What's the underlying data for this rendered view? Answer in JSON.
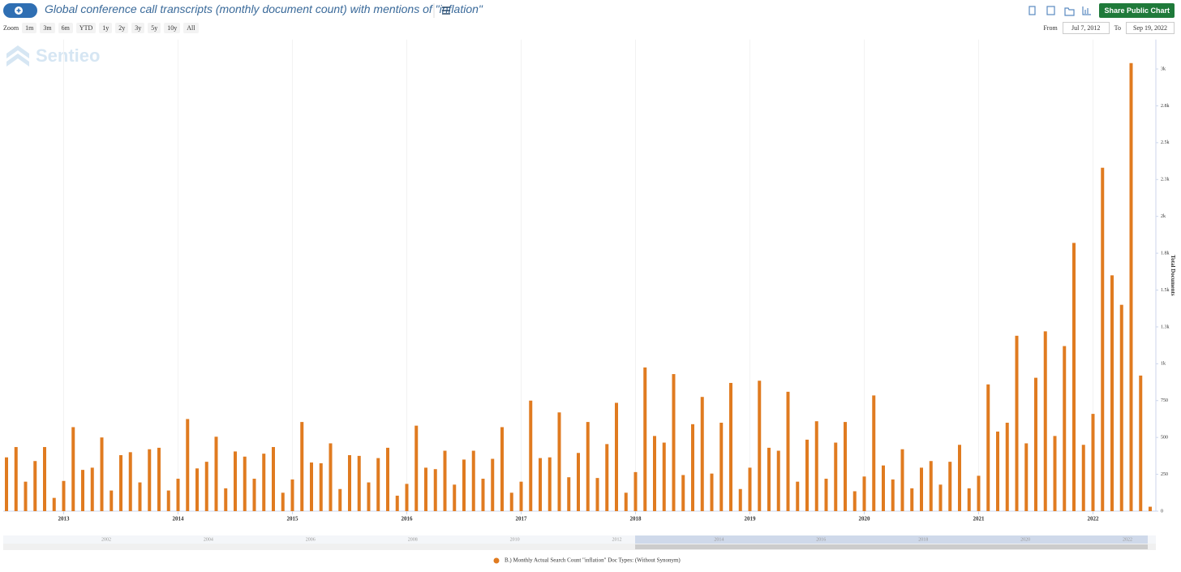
{
  "header": {
    "share_button": "Share Public Chart"
  },
  "toolbar": {
    "zoom_label": "Zoom",
    "buttons": [
      "1m",
      "3m",
      "6m",
      "YTD",
      "1y",
      "2y",
      "3y",
      "5y",
      "10y",
      "All"
    ],
    "from_label": "From",
    "from": "Jul 7, 2012",
    "to_label": "To",
    "to": "Sep 19, 2022"
  },
  "watermark": "Sentieo",
  "navigator": {
    "labels": [
      "2002",
      "2004",
      "2006",
      "2008",
      "2010",
      "2012",
      "2014",
      "2016",
      "2018",
      "2020",
      "2022"
    ]
  },
  "chart_data": {
    "type": "bar",
    "title": "Global conference call transcripts (monthly document count) with mentions of \"inflation\"",
    "y_axis_label": "Total Documents",
    "categories": [
      null,
      null,
      null,
      null,
      null,
      null,
      "2013",
      null,
      null,
      null,
      null,
      null,
      null,
      null,
      null,
      null,
      null,
      null,
      "2014",
      null,
      null,
      null,
      null,
      null,
      null,
      null,
      null,
      null,
      null,
      null,
      "2015",
      null,
      null,
      null,
      null,
      null,
      null,
      null,
      null,
      null,
      null,
      null,
      "2016",
      null,
      null,
      null,
      null,
      null,
      null,
      null,
      null,
      null,
      null,
      null,
      "2017",
      null,
      null,
      null,
      null,
      null,
      null,
      null,
      null,
      null,
      null,
      null,
      "2018",
      null,
      null,
      null,
      null,
      null,
      null,
      null,
      null,
      null,
      null,
      null,
      "2019",
      null,
      null,
      null,
      null,
      null,
      null,
      null,
      null,
      null,
      null,
      null,
      "2020",
      null,
      null,
      null,
      null,
      null,
      null,
      null,
      null,
      null,
      null,
      null,
      "2021",
      null,
      null,
      null,
      null,
      null,
      null,
      null,
      null,
      null,
      null,
      null,
      "2022",
      null,
      null,
      null,
      null,
      null,
      null
    ],
    "series": [
      {
        "name": "B.) Monthly Actual Search Count \"inflation\" Doc Types: (Without Synonym)",
        "color": "#e07b20",
        "values": [
          365,
          435,
          200,
          340,
          435,
          90,
          205,
          570,
          280,
          295,
          500,
          140,
          380,
          400,
          195,
          420,
          430,
          140,
          220,
          625,
          290,
          335,
          505,
          155,
          405,
          370,
          220,
          390,
          435,
          125,
          215,
          605,
          330,
          325,
          460,
          150,
          380,
          375,
          195,
          360,
          430,
          105,
          185,
          580,
          295,
          285,
          410,
          180,
          350,
          410,
          220,
          355,
          570,
          125,
          200,
          750,
          360,
          365,
          670,
          230,
          395,
          605,
          225,
          455,
          735,
          125,
          265,
          975,
          510,
          465,
          930,
          245,
          590,
          775,
          255,
          600,
          870,
          150,
          295,
          885,
          430,
          410,
          810,
          200,
          485,
          610,
          220,
          465,
          605,
          135,
          235,
          785,
          310,
          215,
          420,
          155,
          295,
          340,
          180,
          335,
          450,
          155,
          240,
          860,
          540,
          600,
          1190,
          460,
          905,
          1220,
          510,
          1120,
          1820,
          450,
          660,
          2330,
          1600,
          1400,
          3040,
          920,
          30
        ]
      }
    ],
    "ylim": [
      0,
      3200
    ],
    "yticks": [
      0,
      250,
      500,
      750,
      {
        "value": 1000,
        "label": "1k"
      },
      {
        "value": 1250,
        "label": "1.3k"
      },
      {
        "value": 1500,
        "label": "1.5k"
      },
      {
        "value": 1750,
        "label": "1.8k"
      },
      {
        "value": 2000,
        "label": "2k"
      },
      {
        "value": 2250,
        "label": "2.3k"
      },
      {
        "value": 2500,
        "label": "2.5k"
      },
      {
        "value": 2750,
        "label": "2.8k"
      },
      {
        "value": 3000,
        "label": "3k"
      }
    ],
    "y_axis_side": "right",
    "xgrid": true
  }
}
